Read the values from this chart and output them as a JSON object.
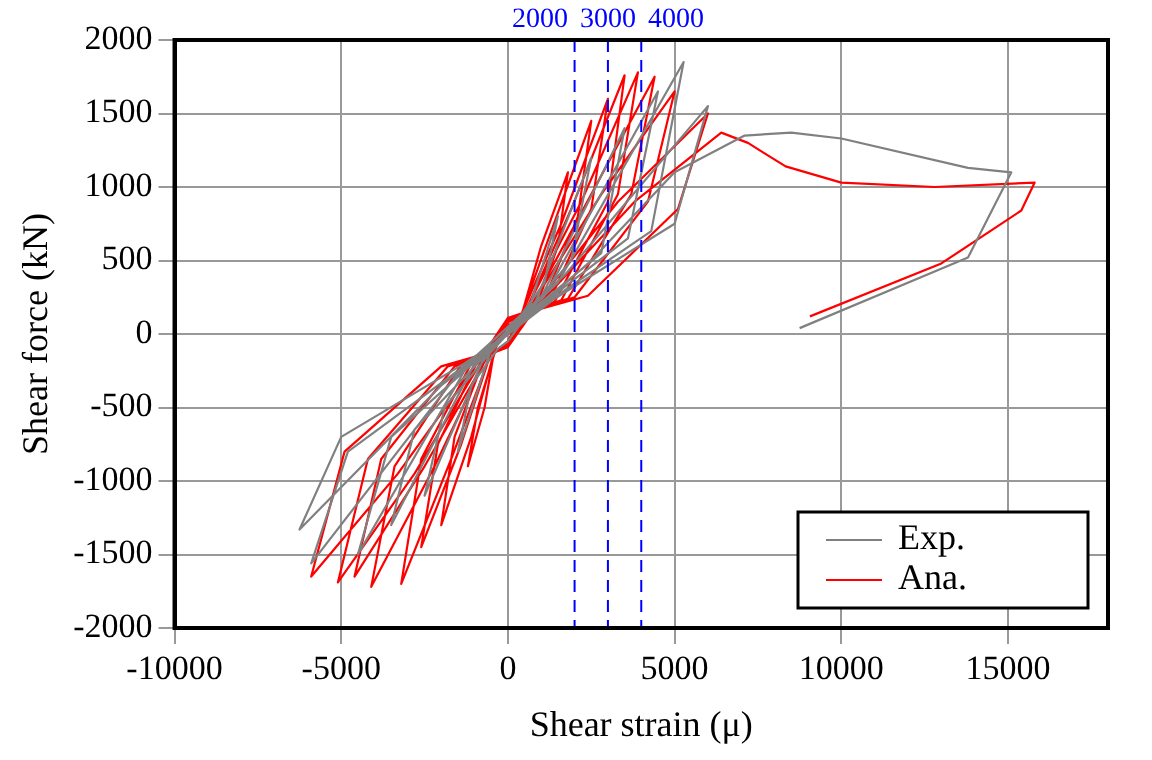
{
  "chart_data": {
    "type": "line",
    "xlabel": "Shear strain (μ)",
    "ylabel": "Shear force (kN)",
    "xlim": [
      -10000,
      18000
    ],
    "xticks": [
      -10000,
      -5000,
      0,
      5000,
      10000,
      15000
    ],
    "ylim": [
      -2000,
      2000
    ],
    "yticks": [
      -2000,
      -1500,
      -1000,
      -500,
      0,
      500,
      1000,
      1500,
      2000
    ],
    "grid": true,
    "legend": "bottom right",
    "marker": "none",
    "line_style": "solid",
    "ref_lines": [
      {
        "axis": "x",
        "value": 2000,
        "label": "2000",
        "color": "#0000ff",
        "line_style": "dashed"
      },
      {
        "axis": "x",
        "value": 3000,
        "label": "3000",
        "color": "#0000ff",
        "line_style": "dashed"
      },
      {
        "axis": "x",
        "value": 4000,
        "label": "4000",
        "color": "#0000ff",
        "line_style": "dashed"
      }
    ],
    "series": [
      {
        "name": "Exp.",
        "color": "#808080",
        "x": [
          0,
          600,
          1500,
          1100,
          300,
          -500,
          -1500,
          -1100,
          -300,
          0,
          800,
          2500,
          1900,
          600,
          -700,
          -2500,
          -1900,
          -500,
          1000,
          3500,
          2800,
          800,
          -1000,
          -3500,
          -2800,
          -700,
          1200,
          4500,
          3600,
          1000,
          -1300,
          -4500,
          -3500,
          -900,
          1500,
          5270,
          4300,
          1200,
          -1600,
          -5900,
          -4800,
          -1200,
          1700,
          6000,
          5000,
          1400,
          -2000,
          -6250,
          -5000,
          -1300,
          0,
          2500,
          5000,
          7100,
          8500,
          10000,
          13800,
          15100,
          13800,
          8750
        ],
        "values": [
          0,
          150,
          800,
          350,
          100,
          -100,
          -800,
          -350,
          -100,
          -50,
          200,
          1200,
          500,
          150,
          -150,
          -1100,
          -500,
          -120,
          250,
          1400,
          550,
          180,
          -200,
          -1300,
          -650,
          -150,
          300,
          1650,
          650,
          200,
          -250,
          -1500,
          -700,
          -170,
          350,
          1850,
          700,
          220,
          -300,
          -1560,
          -800,
          -200,
          400,
          1550,
          750,
          240,
          -350,
          -1330,
          -700,
          -200,
          0,
          500,
          1100,
          1350,
          1370,
          1330,
          1130,
          1100,
          520,
          40
        ]
      },
      {
        "name": "Ana.",
        "color": "#ff0000",
        "x": [
          0,
          400,
          1000,
          1800,
          1500,
          800,
          0,
          -400,
          -700,
          -1200,
          -900,
          -400,
          0,
          400,
          1300,
          2500,
          2100,
          1000,
          0,
          -400,
          -1100,
          -2000,
          -1600,
          -700,
          0,
          400,
          1600,
          3000,
          2500,
          1200,
          0,
          -500,
          -1400,
          -2600,
          -2100,
          -900,
          0,
          500,
          1900,
          3500,
          3000,
          1400,
          0,
          -500,
          -1700,
          -3200,
          -2600,
          -1100,
          0,
          500,
          2200,
          3900,
          3300,
          1600,
          0,
          -600,
          -2200,
          -4100,
          -3400,
          -1400,
          0,
          600,
          2500,
          4400,
          3700,
          1800,
          0,
          -600,
          -2500,
          -4600,
          -3800,
          -1600,
          0,
          600,
          2800,
          5000,
          4200,
          2000,
          0,
          -700,
          -2800,
          -5100,
          -4200,
          -1800,
          0,
          700,
          3300,
          6000,
          5100,
          2400,
          0,
          -800,
          -3300,
          -5900,
          -4900,
          -2000,
          0,
          800,
          3800,
          6400,
          7200,
          8330,
          10000,
          12800,
          15800,
          15400,
          13000,
          9060
        ],
        "values": [
          0,
          120,
          600,
          1100,
          600,
          150,
          60,
          -100,
          -500,
          -900,
          -500,
          -130,
          -50,
          130,
          700,
          1450,
          800,
          180,
          80,
          -110,
          -700,
          -1300,
          -700,
          -160,
          -60,
          130,
          750,
          1600,
          850,
          200,
          90,
          -120,
          -750,
          -1450,
          -750,
          -180,
          -70,
          140,
          850,
          1760,
          900,
          220,
          100,
          -130,
          -850,
          -1700,
          -850,
          -200,
          -80,
          150,
          900,
          1780,
          950,
          230,
          110,
          -140,
          -900,
          -1720,
          -900,
          -210,
          -90,
          150,
          950,
          1750,
          950,
          240,
          110,
          -150,
          -900,
          -1650,
          -850,
          -220,
          -90,
          160,
          950,
          1650,
          900,
          250,
          110,
          -150,
          -950,
          -1690,
          -850,
          -220,
          -90,
          160,
          900,
          1500,
          850,
          260,
          110,
          -160,
          -950,
          -1650,
          -800,
          -220,
          -90,
          170,
          900,
          1370,
          1300,
          1140,
          1030,
          1000,
          1030,
          840,
          480,
          120
        ]
      }
    ]
  }
}
